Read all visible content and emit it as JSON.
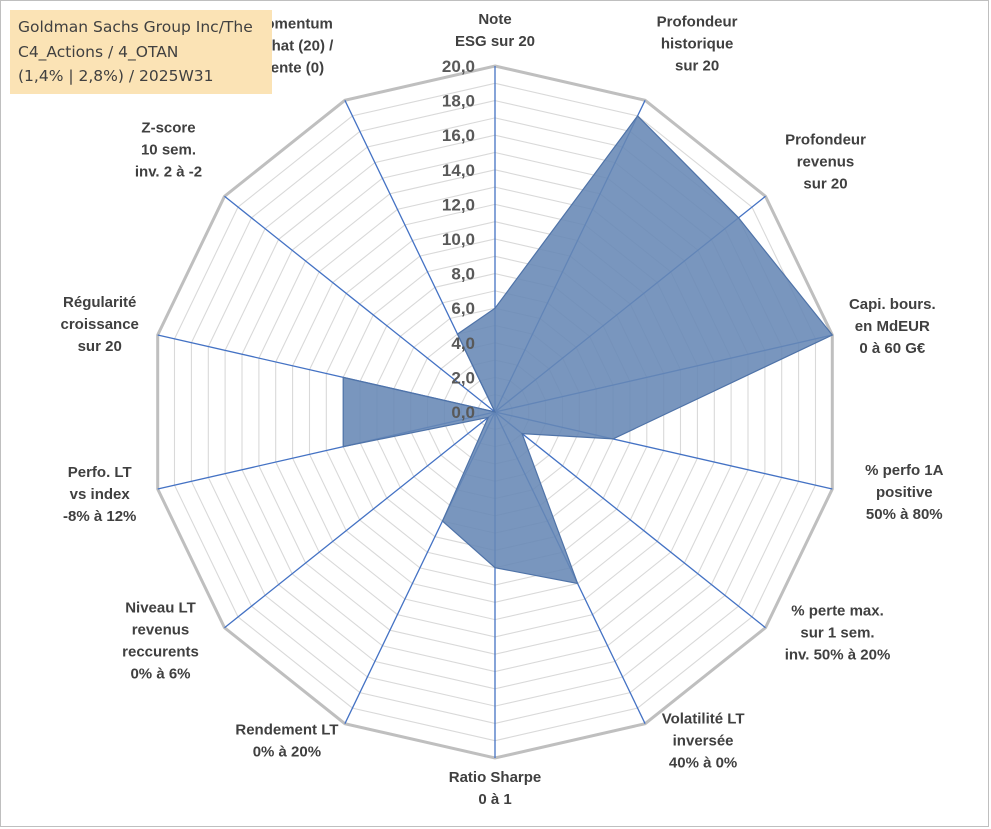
{
  "title": {
    "lines": [
      "Goldman Sachs Group Inc/The",
      "C4_Actions / 4_OTAN",
      "(1,4% | 2,8%) / 2025W31"
    ]
  },
  "chart_data": {
    "type": "radar",
    "title": "",
    "axes": [
      [
        "Note",
        "ESG sur 20"
      ],
      [
        "Profondeur",
        "historique",
        "sur 20"
      ],
      [
        "Profondeur",
        "revenus",
        "sur 20"
      ],
      [
        "Capi. bours.",
        "en MdEUR",
        "0 à 60 G€"
      ],
      [
        "% perfo 1A",
        "positive",
        "50% à 80%"
      ],
      [
        "% perte max.",
        "sur 1 sem.",
        "inv. 50% à 20%"
      ],
      [
        "Volatilité LT",
        "inversée",
        "40% à 0%"
      ],
      [
        "Ratio Sharpe",
        "0 à 1"
      ],
      [
        "Rendement LT",
        "0% à 20%"
      ],
      [
        "Niveau LT",
        "revenus",
        "reccurents",
        "0% à 6%"
      ],
      [
        "Perfo. LT",
        "vs index",
        "-8% à 12%"
      ],
      [
        "Régularité",
        "croissance",
        "sur 20"
      ],
      [
        "Z-score",
        "10 sem.",
        "inv. 2 à -2"
      ],
      [
        "Momentum",
        "Achat (20) /",
        "Vente (0)"
      ]
    ],
    "series": [
      {
        "values": [
          6.0,
          19.0,
          18.0,
          20.0,
          7.0,
          2.0,
          11.0,
          9.0,
          7.0,
          0.5,
          9.0,
          9.0,
          0.0,
          5.0
        ]
      }
    ],
    "rmin": 0,
    "rmax": 20,
    "ticks": [
      "0,0",
      "2,0",
      "4,0",
      "6,0",
      "8,0",
      "10,0",
      "12,0",
      "14,0",
      "16,0",
      "18,0",
      "20,0"
    ],
    "tick_values": [
      0,
      2,
      4,
      6,
      8,
      10,
      12,
      14,
      16,
      18,
      20
    ],
    "grid": true,
    "legend": "none",
    "colors": {
      "area": "#6788b5",
      "spoke": "#4472c4",
      "grid": "#d9d9d9",
      "outer": "#bfbfbf"
    }
  }
}
